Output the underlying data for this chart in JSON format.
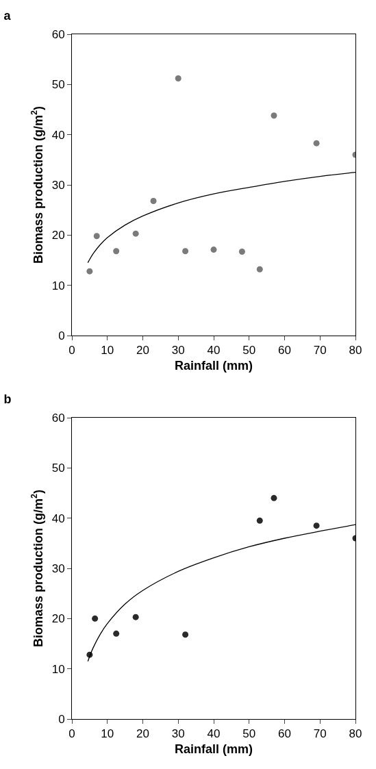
{
  "chart_data": [
    {
      "type": "scatter",
      "title": "a",
      "xlabel": "Rainfall (mm)",
      "ylabel": "Biomass production (g/m$^{2}$)",
      "xlim": [
        0,
        80
      ],
      "ylim": [
        0,
        60
      ],
      "xticks": [
        0,
        10,
        20,
        30,
        40,
        50,
        60,
        70,
        80
      ],
      "yticks": [
        0,
        10,
        20,
        30,
        40,
        50,
        60
      ],
      "grid": false,
      "series": [
        {
          "color": "#7a7a7a",
          "marker": "circle",
          "x": [
            5,
            7,
            12.5,
            18,
            23,
            30,
            32,
            40,
            48,
            53,
            57,
            69,
            80
          ],
          "values": [
            12.8,
            19.8,
            16.8,
            20.3,
            26.8,
            51.2,
            16.8,
            17.1,
            16.7,
            13.2,
            43.8,
            38.3,
            36
          ]
        },
        {
          "type": "line",
          "color": "#000000",
          "marker": "none",
          "line_style": "solid",
          "x": [
            4.5,
            6,
            8,
            10,
            15,
            20,
            30,
            40,
            50,
            60,
            70,
            80
          ],
          "values": [
            14.5,
            16.3,
            18.1,
            19.5,
            22.0,
            23.8,
            26.4,
            28.2,
            29.5,
            30.7,
            31.7,
            32.5
          ]
        }
      ]
    },
    {
      "type": "scatter",
      "title": "b",
      "xlabel": "Rainfall (mm)",
      "ylabel": "Biomass production (g/m$^{2}$)",
      "xlim": [
        0,
        80
      ],
      "ylim": [
        0,
        60
      ],
      "xticks": [
        0,
        10,
        20,
        30,
        40,
        50,
        60,
        70,
        80
      ],
      "yticks": [
        0,
        10,
        20,
        30,
        40,
        50,
        60
      ],
      "grid": false,
      "series": [
        {
          "color": "#2a2a2a",
          "marker": "circle",
          "x": [
            5,
            6.5,
            12.5,
            18,
            32,
            53,
            57,
            69,
            80
          ],
          "values": [
            12.8,
            20,
            17,
            20.3,
            16.8,
            39.5,
            44,
            38.5,
            36
          ]
        },
        {
          "type": "line",
          "color": "#000000",
          "marker": "none",
          "line_style": "solid",
          "x": [
            4.5,
            6,
            8,
            10,
            15,
            20,
            30,
            40,
            50,
            60,
            70,
            80
          ],
          "values": [
            11.5,
            14.2,
            16.9,
            19.0,
            22.9,
            25.6,
            29.4,
            32.1,
            34.3,
            36.0,
            37.4,
            38.7
          ]
        }
      ]
    }
  ]
}
